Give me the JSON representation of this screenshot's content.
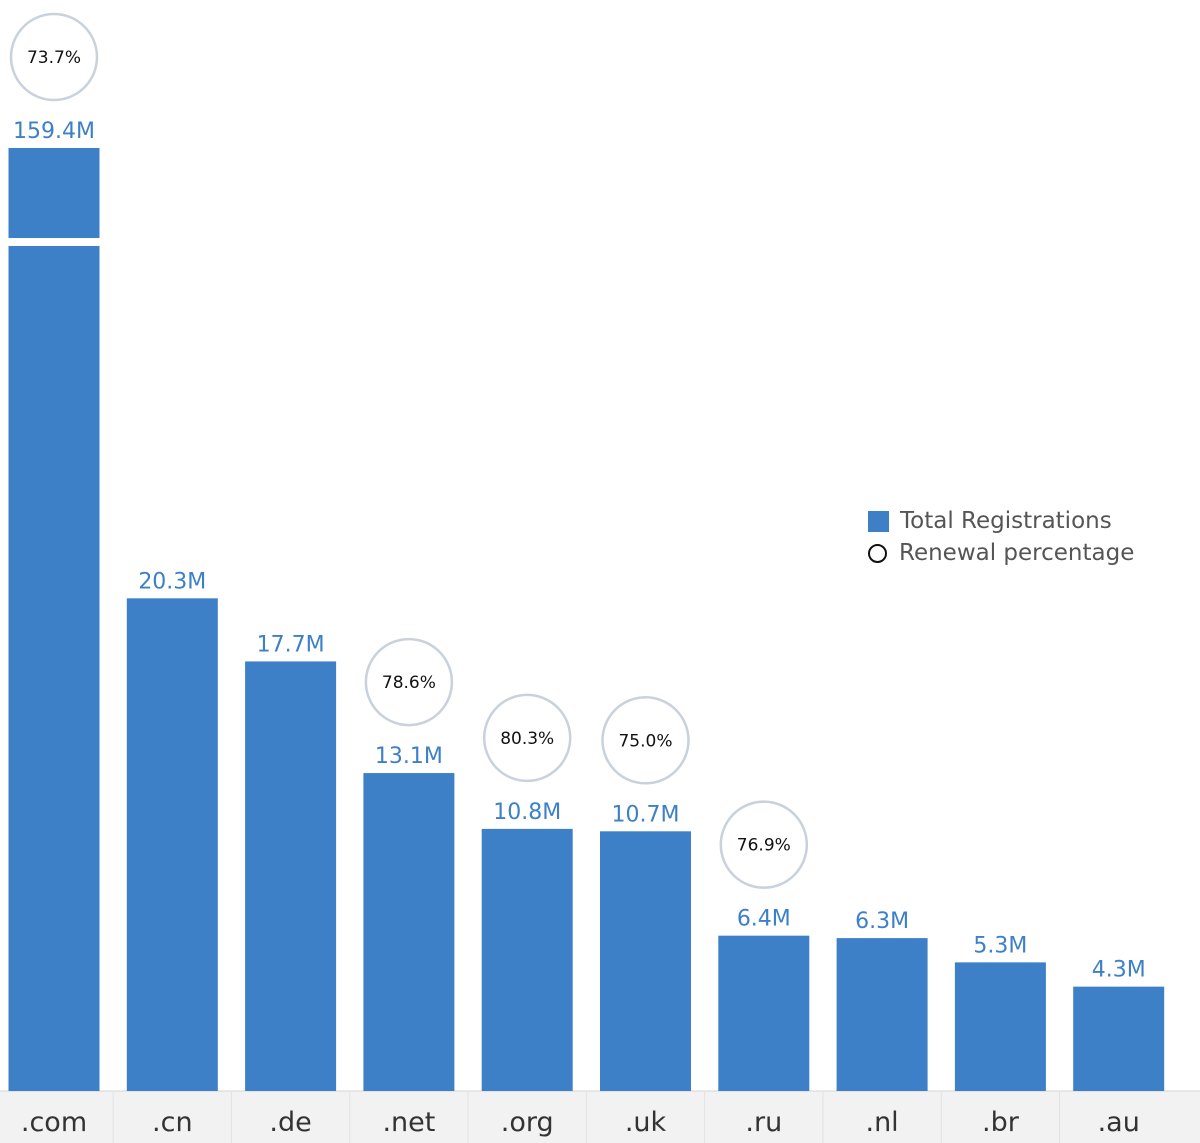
{
  "chart_data": {
    "type": "bar",
    "categories": [
      ".com",
      ".cn",
      ".de",
      ".net",
      ".org",
      ".uk",
      ".ru",
      ".nl",
      ".br",
      ".au"
    ],
    "series": [
      {
        "name": "Total Registrations",
        "values": [
          159.4,
          20.3,
          17.7,
          13.1,
          10.8,
          10.7,
          6.4,
          6.3,
          5.3,
          4.3
        ],
        "labels": [
          "159.4M",
          "20.3M",
          "17.7M",
          "13.1M",
          "10.8M",
          "10.7M",
          "6.4M",
          "6.3M",
          "5.3M",
          "4.3M"
        ],
        "color": "#3d80c8"
      },
      {
        "name": "Renewal percentage",
        "values": [
          73.7,
          null,
          null,
          78.6,
          80.3,
          75.0,
          76.9,
          null,
          null,
          null
        ],
        "labels": [
          "73.7%",
          null,
          null,
          "78.6%",
          "80.3%",
          "75.0%",
          "76.9%",
          null,
          null,
          null
        ]
      }
    ],
    "axis_break": true,
    "legend_position": "right",
    "title": "",
    "xlabel": "",
    "ylabel": ""
  },
  "legend": {
    "registrations_label": "Total Registrations",
    "renewal_label": "Renewal percentage"
  },
  "colors": {
    "bar": "#3d80c8",
    "value_label": "#3d80c8",
    "axis_label": "#333333",
    "circle_stroke": "#c8d1dc",
    "axis_band": "#f2f2f2"
  }
}
